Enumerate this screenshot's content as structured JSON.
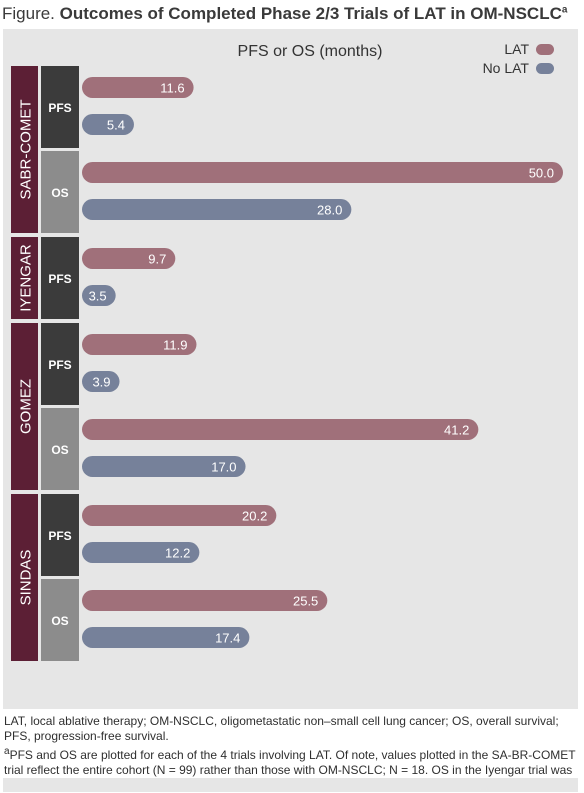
{
  "figure": {
    "title_prefix": "Figure.",
    "title": "Outcomes of Completed Phase 2/3 Trials of LAT in OM-NSCLC",
    "title_superscript": "a"
  },
  "colors": {
    "background": "#e6e6e6",
    "trial_label": "#5c1f35",
    "pfs_label": "#3b3b3b",
    "os_label": "#8c8c8c",
    "lat_bar": "#a0707a",
    "no_lat_bar": "#76819a",
    "bar_text": "#ffffff"
  },
  "chart_data": {
    "type": "bar",
    "orientation": "horizontal",
    "title": "PFS or OS (months)",
    "xlim": [
      0,
      50
    ],
    "grid": false,
    "legend_position": "top-right",
    "series": [
      {
        "name": "LAT",
        "color": "#a0707a"
      },
      {
        "name": "No LAT",
        "color": "#76819a"
      }
    ],
    "trials": [
      {
        "name": "SABR-COMET",
        "groups": [
          {
            "measure": "PFS",
            "values": [
              11.6,
              5.4
            ],
            "labels": [
              "11.6",
              "5.4"
            ]
          },
          {
            "measure": "OS",
            "values": [
              50.0,
              28.0
            ],
            "labels": [
              "50.0",
              "28.0"
            ]
          }
        ]
      },
      {
        "name": "IYENGAR",
        "groups": [
          {
            "measure": "PFS",
            "values": [
              9.7,
              3.5
            ],
            "labels": [
              "9.7",
              "3.5"
            ]
          }
        ]
      },
      {
        "name": "GOMEZ",
        "groups": [
          {
            "measure": "PFS",
            "values": [
              11.9,
              3.9
            ],
            "labels": [
              "11.9",
              "3.9"
            ]
          },
          {
            "measure": "OS",
            "values": [
              41.2,
              17.0
            ],
            "labels": [
              "41.2",
              "17.0"
            ]
          }
        ]
      },
      {
        "name": "SINDAS",
        "groups": [
          {
            "measure": "PFS",
            "values": [
              20.2,
              12.2
            ],
            "labels": [
              "20.2",
              "12.2"
            ]
          },
          {
            "measure": "OS",
            "values": [
              25.5,
              17.4
            ],
            "labels": [
              "25.5",
              "17.4"
            ]
          }
        ]
      }
    ]
  },
  "footnotes": {
    "abbreviations": "LAT, local ablative therapy; OM-NSCLC, oligometastatic non–small cell lung cancer; OS, overall survival; PFS, progression-free survival.",
    "note_marker": "a",
    "note": "PFS and OS are plotted for each of the 4 trials involving LAT. Of note, values plotted in the SA-BR-COMET trial reflect the entire cohort (N = 99) rather than those with OM-NSCLC; N = 18. OS in the Iyengar trial was not reached and is therefore not shown."
  }
}
